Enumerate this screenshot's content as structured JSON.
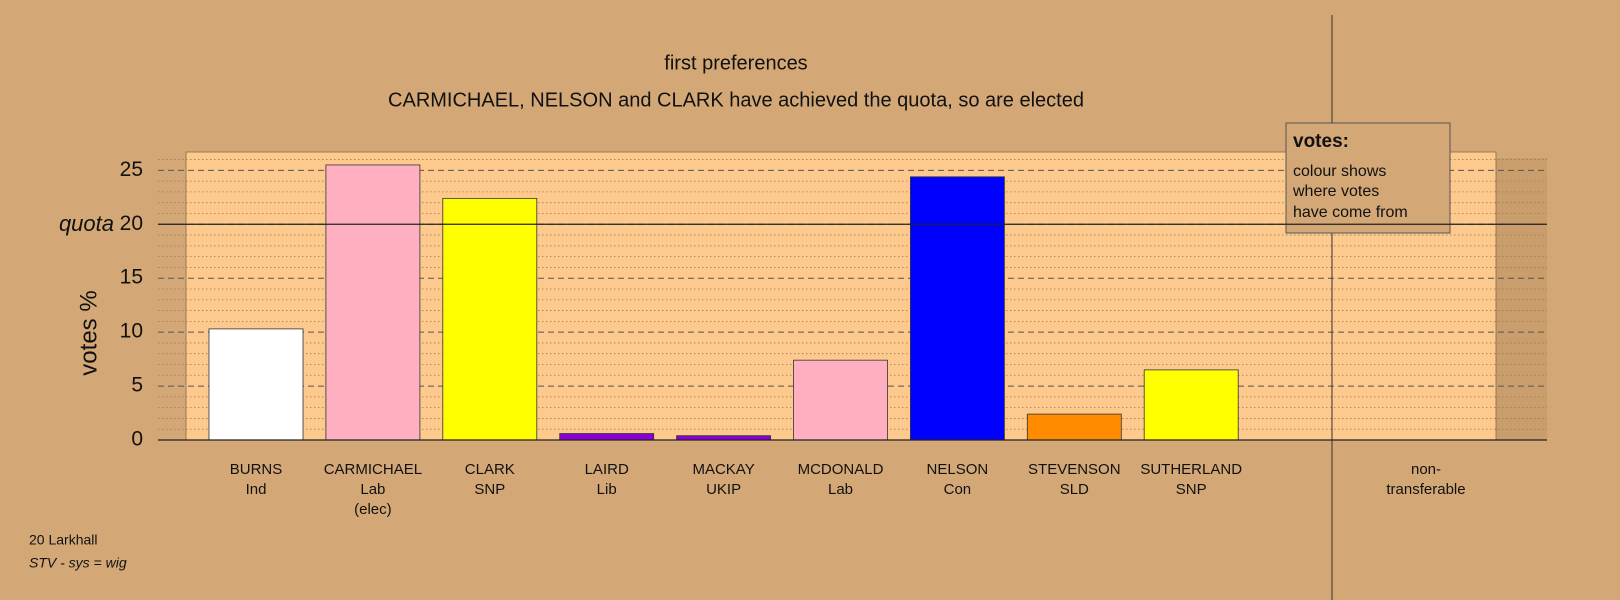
{
  "chart_data": {
    "type": "bar",
    "title": "first preferences",
    "subtitle": "CARMICHAEL, NELSON and CLARK have achieved the quota, so are elected",
    "y_label": "votes %",
    "categories": [
      [
        "BURNS",
        "Ind"
      ],
      [
        "CARMICHAEL",
        "Lab",
        "(elec)"
      ],
      [
        "CLARK",
        "SNP"
      ],
      [
        "LAIRD",
        "Lib"
      ],
      [
        "MACKAY",
        "UKIP"
      ],
      [
        "MCDONALD",
        "Lab"
      ],
      [
        "NELSON",
        "Con"
      ],
      [
        "STEVENSON",
        "SLD"
      ],
      [
        "SUTHERLAND",
        "SNP"
      ],
      [
        "non-",
        "transferable"
      ]
    ],
    "values": [
      10.3,
      25.5,
      22.4,
      0.6,
      0.4,
      7.4,
      24.4,
      2.4,
      6.5,
      null
    ],
    "colors": [
      "#ffffff",
      "#ffb0c0",
      "#ffff00",
      "#8a00d4",
      "#8a00d4",
      "#ffb0c0",
      "#0000ff",
      "#ff8c00",
      "#ffff00",
      null
    ],
    "ylim": [
      0,
      26.7
    ],
    "yticks": [
      0,
      5,
      10,
      15,
      20,
      25
    ],
    "minor_yticks": [
      1,
      2,
      3,
      4,
      6,
      7,
      8,
      9,
      11,
      12,
      13,
      14,
      16,
      17,
      18,
      19,
      21,
      22,
      23,
      24,
      26
    ],
    "quota": {
      "value": 20,
      "label": "quota"
    },
    "legend": {
      "title": "votes:",
      "lines": [
        "colour shows",
        "where votes",
        "have come from"
      ]
    },
    "footer": [
      "20 Larkhall",
      "STV - sys = wig"
    ]
  }
}
